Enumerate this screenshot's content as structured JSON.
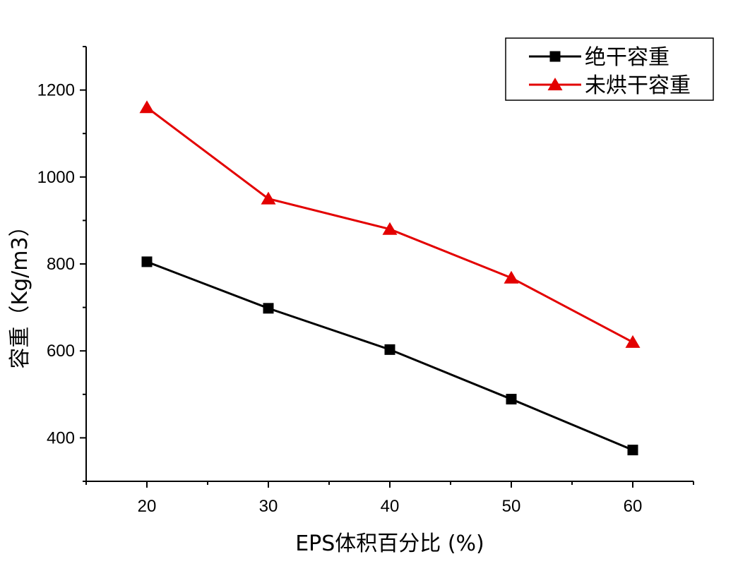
{
  "chart_data": {
    "type": "line",
    "xlabel": "EPS体积百分比 (%)",
    "ylabel": "容重（Kg/m3）",
    "xlim": [
      15,
      65
    ],
    "ylim": [
      300,
      1300
    ],
    "x_ticks": [
      20,
      30,
      40,
      50,
      60
    ],
    "y_ticks": [
      400,
      600,
      800,
      1000,
      1200
    ],
    "legend_position": "top-right",
    "grid": false,
    "series": [
      {
        "name": "绝干容重",
        "color": "#000000",
        "marker": "square",
        "x": [
          20,
          30,
          40,
          50,
          60
        ],
        "values": [
          805,
          698,
          603,
          489,
          372
        ]
      },
      {
        "name": "未烘干容重",
        "color": "#e30000",
        "marker": "triangle",
        "x": [
          20,
          30,
          40,
          50,
          60
        ],
        "values": [
          1160,
          950,
          880,
          768,
          620
        ]
      }
    ]
  }
}
